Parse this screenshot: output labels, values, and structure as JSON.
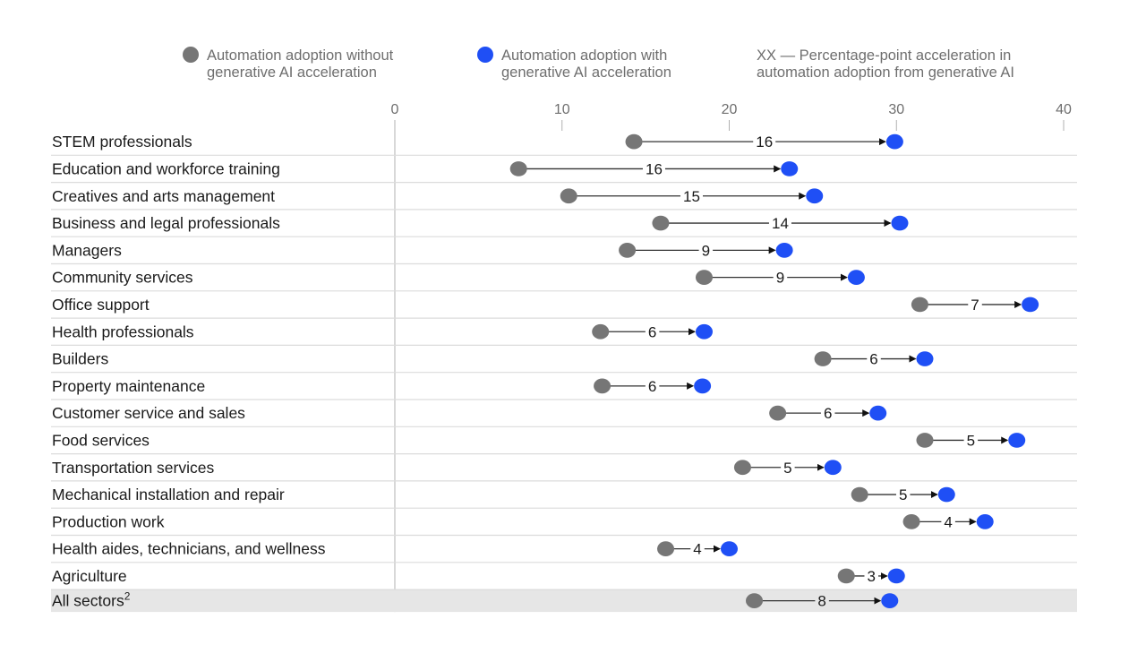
{
  "chart_data": {
    "type": "dumbbell",
    "legend": {
      "without": {
        "line1": "Automation adoption without",
        "line2": "generative AI acceleration",
        "color": "#767676"
      },
      "with": {
        "line1": "Automation adoption with",
        "line2": "generative AI acceleration",
        "color": "#1f4ff5"
      },
      "note": {
        "line1": "XX — Percentage-point acceleration in",
        "line2": "automation adoption from generative AI"
      }
    },
    "x_ticks": [
      "0",
      "10",
      "20",
      "30",
      "40"
    ],
    "xlim": [
      0,
      40
    ],
    "categories": [
      {
        "label": "STEM professionals",
        "without": 14.3,
        "with": 29.9,
        "diff": "16"
      },
      {
        "label": "Education and workforce training",
        "without": 7.4,
        "with": 23.6,
        "diff": "16"
      },
      {
        "label": "Creatives and arts management",
        "without": 10.4,
        "with": 25.1,
        "diff": "15"
      },
      {
        "label": "Business and legal professionals",
        "without": 15.9,
        "with": 30.2,
        "diff": "14"
      },
      {
        "label": "Managers",
        "without": 13.9,
        "with": 23.3,
        "diff": "9"
      },
      {
        "label": "Community services",
        "without": 18.5,
        "with": 27.6,
        "diff": "9"
      },
      {
        "label": "Office support",
        "without": 31.4,
        "with": 38.0,
        "diff": "7"
      },
      {
        "label": "Health professionals",
        "without": 12.3,
        "with": 18.5,
        "diff": "6"
      },
      {
        "label": "Builders",
        "without": 25.6,
        "with": 31.7,
        "diff": "6"
      },
      {
        "label": "Property maintenance",
        "without": 12.4,
        "with": 18.4,
        "diff": "6"
      },
      {
        "label": "Customer service and sales",
        "without": 22.9,
        "with": 28.9,
        "diff": "6"
      },
      {
        "label": "Food services",
        "without": 31.7,
        "with": 37.2,
        "diff": "5"
      },
      {
        "label": "Transportation services",
        "without": 20.8,
        "with": 26.2,
        "diff": "5"
      },
      {
        "label": "Mechanical installation and repair",
        "without": 27.8,
        "with": 33.0,
        "diff": "5"
      },
      {
        "label": "Production work",
        "without": 30.9,
        "with": 35.3,
        "diff": "4"
      },
      {
        "label": "Health aides, technicians, and wellness",
        "without": 16.2,
        "with": 20.0,
        "diff": "4"
      },
      {
        "label": "Agriculture",
        "without": 27.0,
        "with": 30.0,
        "diff": "3"
      }
    ],
    "total": {
      "label": "All sectors",
      "superscript": "2",
      "without": 21.5,
      "with": 29.6,
      "diff": "8",
      "highlight": "#e6e6e6"
    }
  }
}
